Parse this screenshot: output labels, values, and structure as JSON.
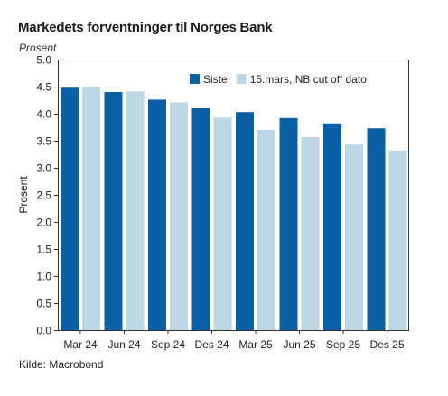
{
  "chart_data": {
    "type": "bar",
    "title": "Markedets forventninger til Norges Bank",
    "subtitle": "Prosent",
    "ylabel": "Prosent",
    "source": "Kilde: Macrobond",
    "categories": [
      "Mar 24",
      "Jun 24",
      "Sep 24",
      "Des 24",
      "Mar 25",
      "Jun 25",
      "Sep 25",
      "Des 25"
    ],
    "series": [
      {
        "name": "Siste",
        "color": "#0a5fa5",
        "values": [
          4.48,
          4.4,
          4.26,
          4.1,
          4.03,
          3.92,
          3.82,
          3.73
        ]
      },
      {
        "name": "15.mars, NB cut off dato",
        "color": "#bdd7e4",
        "values": [
          4.5,
          4.41,
          4.21,
          3.93,
          3.7,
          3.57,
          3.43,
          3.32
        ]
      }
    ],
    "ylim": [
      0,
      5
    ],
    "yticks": [
      "0.0",
      "0.5",
      "1.0",
      "1.5",
      "2.0",
      "2.5",
      "3.0",
      "3.5",
      "4.0",
      "4.5",
      "5.0"
    ],
    "grid": false,
    "legend": "top-right"
  }
}
